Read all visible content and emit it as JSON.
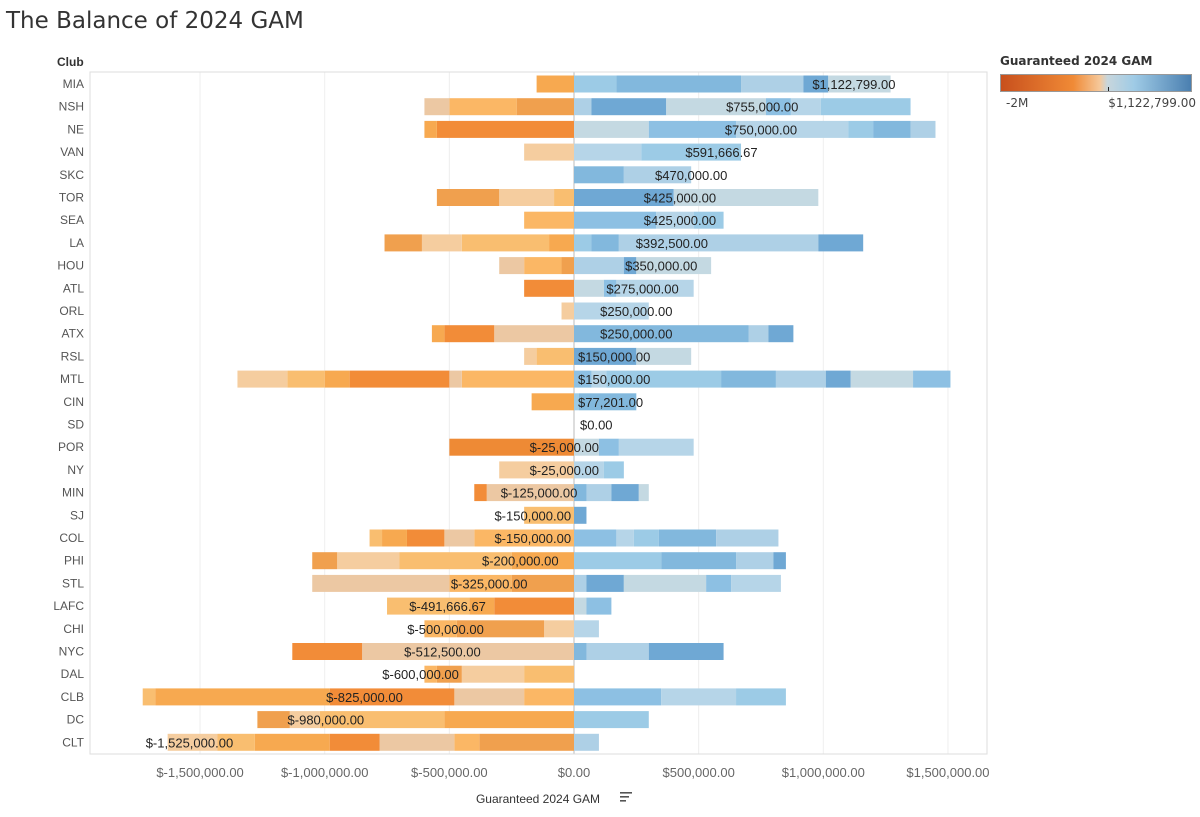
{
  "page": {
    "title": "The Balance of 2024 GAM"
  },
  "legend": {
    "title": "Guaranteed 2024 GAM",
    "min_label": "-2M",
    "max_label": "$1,122,799.00",
    "colors": [
      "#c8501d",
      "#f08a36",
      "#f5c89a",
      "#c8d6dc",
      "#9fcbe6",
      "#4a7fb0"
    ]
  },
  "chart_data": {
    "type": "bar",
    "title": "The Balance of 2024 GAM",
    "xlabel": "Guaranteed 2024 GAM",
    "ylabel": "Club",
    "xlim": [
      -1850000,
      1650000
    ],
    "xticks": [
      -1500000,
      -1000000,
      -500000,
      0,
      500000,
      1000000,
      1500000
    ],
    "xtick_labels": [
      "$-1,500,000.00",
      "$-1,000,000.00",
      "$-500,000.00",
      "$0.00",
      "$500,000.00",
      "$1,000,000.00",
      "$1,500,000.00"
    ],
    "rows": [
      {
        "club": "MIA",
        "total": 1122799,
        "label": "$1,122,799.00",
        "neg": [
          150000
        ],
        "pos": [
          170000,
          500000,
          250000,
          100000,
          250000
        ]
      },
      {
        "club": "NSH",
        "total": 755000,
        "label": "$755,000.00",
        "neg": [
          230000,
          270000,
          100000
        ],
        "pos": [
          70000,
          300000,
          400000,
          100000,
          120000,
          360000
        ]
      },
      {
        "club": "NE",
        "total": 750000,
        "label": "$750,000.00",
        "neg": [
          550000,
          50000
        ],
        "pos": [
          300000,
          350000,
          450000,
          100000,
          150000,
          100000
        ]
      },
      {
        "club": "VAN",
        "total": 591666.67,
        "label": "$591,666.67",
        "neg": [
          200000
        ],
        "pos": [
          270000,
          400000
        ]
      },
      {
        "club": "SKC",
        "total": 470000,
        "label": "$470,000.00",
        "neg": [],
        "pos": [
          200000,
          270000
        ]
      },
      {
        "club": "TOR",
        "total": 425000,
        "label": "$425,000.00",
        "neg": [
          80000,
          220000,
          250000
        ],
        "pos": [
          400000,
          580000
        ]
      },
      {
        "club": "SEA",
        "total": 425000,
        "label": "$425,000.00",
        "neg": [
          200000
        ],
        "pos": [
          330000,
          150000,
          120000
        ]
      },
      {
        "club": "LA",
        "total": 392500,
        "label": "$392,500.00",
        "neg": [
          100000,
          350000,
          160000,
          150000
        ],
        "pos": [
          70000,
          110000,
          800000,
          180000
        ]
      },
      {
        "club": "HOU",
        "total": 350000,
        "label": "$350,000.00",
        "neg": [
          50000,
          150000,
          100000
        ],
        "pos": [
          200000,
          50000,
          300000
        ]
      },
      {
        "club": "ATL",
        "total": 275000,
        "label": "$275,000.00",
        "neg": [
          200000
        ],
        "pos": [
          120000,
          50000,
          310000
        ]
      },
      {
        "club": "ORL",
        "total": 250000,
        "label": "$250,000.00",
        "neg": [
          50000
        ],
        "pos": [
          300000
        ]
      },
      {
        "club": "ATX",
        "total": 250000,
        "label": "$250,000.00",
        "neg": [
          320000,
          200000,
          50000
        ],
        "pos": [
          700000,
          80000,
          100000
        ]
      },
      {
        "club": "RSL",
        "total": 150000,
        "label": "$150,000.00",
        "neg": [
          150000,
          50000
        ],
        "pos": [
          250000,
          220000
        ]
      },
      {
        "club": "MTL",
        "total": 150000,
        "label": "$150,000.00",
        "neg": [
          450000,
          50000,
          400000,
          100000,
          150000,
          200000
        ],
        "pos": [
          70000,
          60000,
          460000,
          220000,
          200000,
          100000,
          250000,
          150000
        ]
      },
      {
        "club": "CIN",
        "total": 77201,
        "label": "$77,201.00",
        "neg": [
          170000
        ],
        "pos": [
          20000,
          230000
        ]
      },
      {
        "club": "SD",
        "total": 0,
        "label": "$0.00",
        "neg": [],
        "pos": []
      },
      {
        "club": "POR",
        "total": -25000,
        "label": "$-25,000.00",
        "neg": [
          500000
        ],
        "pos": [
          100000,
          80000,
          300000
        ]
      },
      {
        "club": "NY",
        "total": -25000,
        "label": "$-25,000.00",
        "neg": [
          300000
        ],
        "pos": [
          120000,
          80000
        ]
      },
      {
        "club": "MIN",
        "total": -125000,
        "label": "$-125,000.00",
        "neg": [
          350000,
          50000
        ],
        "pos": [
          50000,
          100000,
          110000,
          40000
        ]
      },
      {
        "club": "SJ",
        "total": -150000,
        "label": "$-150,000.00",
        "neg": [
          200000
        ],
        "pos": [
          50000
        ]
      },
      {
        "club": "COL",
        "total": -150000,
        "label": "$-150,000.00",
        "neg": [
          400000,
          120000,
          150000,
          100000,
          50000
        ],
        "pos": [
          170000,
          70000,
          100000,
          230000,
          250000
        ]
      },
      {
        "club": "PHI",
        "total": -200000,
        "label": "$-200,000.00",
        "neg": [
          250000,
          450000,
          250000,
          100000
        ],
        "pos": [
          350000,
          300000,
          150000,
          50000
        ]
      },
      {
        "club": "STL",
        "total": -325000,
        "label": "$-325,000.00",
        "neg": [
          250000,
          250000,
          550000
        ],
        "pos": [
          50000,
          150000,
          330000,
          100000,
          200000
        ]
      },
      {
        "club": "LAFC",
        "total": -491666.67,
        "label": "$-491,666.67",
        "neg": [
          320000,
          100000,
          330000
        ],
        "pos": [
          50000,
          100000
        ]
      },
      {
        "club": "CHI",
        "total": -500000,
        "label": "$-500,000.00",
        "neg": [
          120000,
          350000,
          130000
        ],
        "pos": [
          100000
        ]
      },
      {
        "club": "NYC",
        "total": -512500,
        "label": "$-512,500.00",
        "neg": [
          850000,
          280000
        ],
        "pos": [
          50000,
          250000,
          300000
        ]
      },
      {
        "club": "DAL",
        "total": -600000,
        "label": "$-600,000.00",
        "neg": [
          200000,
          250000,
          100000,
          50000
        ],
        "pos": []
      },
      {
        "club": "CLB",
        "total": -825000,
        "label": "$-825,000.00",
        "neg": [
          200000,
          280000,
          500000,
          700000,
          50000
        ],
        "pos": [
          350000,
          300000,
          200000
        ]
      },
      {
        "club": "DC",
        "total": -980000,
        "label": "$-980,000.00",
        "neg": [
          520000,
          500000,
          120000,
          130000
        ],
        "pos": [
          300000
        ]
      },
      {
        "club": "CLT",
        "total": -1525000,
        "label": "$-1,525,000.00",
        "neg": [
          380000,
          100000,
          300000,
          200000,
          300000,
          150000,
          200000
        ],
        "pos": [
          100000
        ]
      }
    ]
  }
}
